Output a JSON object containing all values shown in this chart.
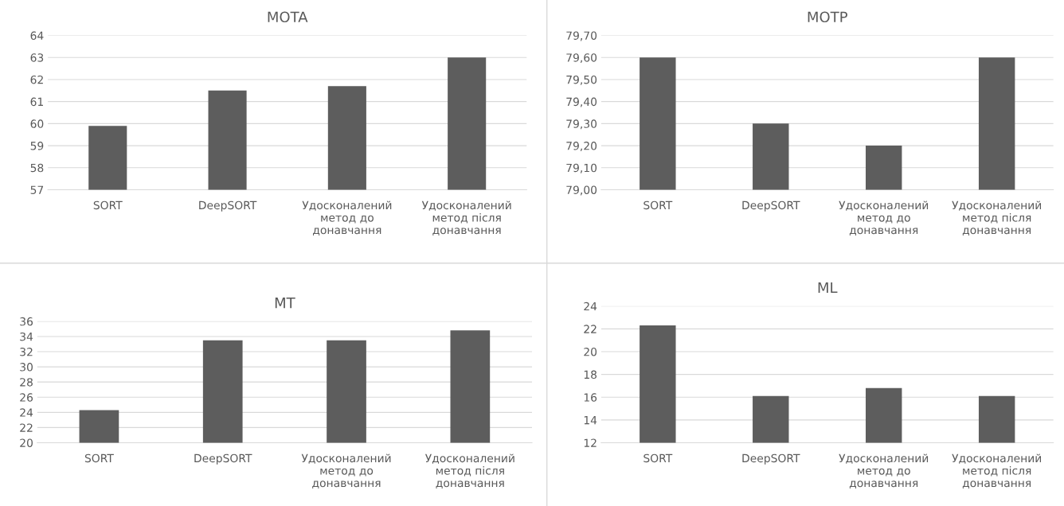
{
  "chart_data": [
    {
      "type": "bar",
      "title": "MOTA",
      "categories": [
        "SORT",
        "DeepSORT",
        "Удосконалений\nметод до\nдонавчання",
        "Удосконалений\nметод після\nдонавчання"
      ],
      "values": [
        59.9,
        61.5,
        61.7,
        63.0
      ],
      "color": "#5d5d5d",
      "ylim": [
        57,
        64
      ],
      "yticks": [
        57,
        58,
        59,
        60,
        61,
        62,
        63,
        64
      ],
      "grid": "y"
    },
    {
      "type": "bar",
      "title": "MOTP",
      "categories": [
        "SORT",
        "DeepSORT",
        "Удосконалений\nметод до\nдонавчання",
        "Удосконалений\nметод після\nдонавчання"
      ],
      "values": [
        79.6,
        79.3,
        79.2,
        79.6
      ],
      "color": "#5d5d5d",
      "ylim": [
        79.0,
        79.7
      ],
      "yticks": [
        {
          "value": 79.0,
          "label": "79,00"
        },
        {
          "value": 79.1,
          "label": "79,10"
        },
        {
          "value": 79.2,
          "label": "79,20"
        },
        {
          "value": 79.3,
          "label": "79,30"
        },
        {
          "value": 79.4,
          "label": "79,40"
        },
        {
          "value": 79.5,
          "label": "79,50"
        },
        {
          "value": 79.6,
          "label": "79,60"
        },
        {
          "value": 79.7,
          "label": "79,70"
        }
      ],
      "grid": "y"
    },
    {
      "type": "bar",
      "title": "MT",
      "categories": [
        "SORT",
        "DeepSORT",
        "Удосконалений\nметод до\nдонавчання",
        "Удосконалений\nметод після\nдонавчання"
      ],
      "values": [
        24.3,
        33.5,
        33.5,
        34.8
      ],
      "color": "#5d5d5d",
      "ylim": [
        20,
        36
      ],
      "yticks": [
        20,
        22,
        24,
        26,
        28,
        30,
        32,
        34,
        36
      ],
      "grid": "y"
    },
    {
      "type": "bar",
      "title": "ML",
      "categories": [
        "SORT",
        "DeepSORT",
        "Удосконалений\nметод до\nдонавчання",
        "Удосконалений\nметод після\nдонавчання"
      ],
      "values": [
        22.3,
        16.1,
        16.8,
        16.1
      ],
      "color": "#5d5d5d",
      "ylim": [
        12,
        24
      ],
      "yticks": [
        12,
        14,
        16,
        18,
        20,
        22,
        24
      ],
      "grid": "y"
    }
  ]
}
